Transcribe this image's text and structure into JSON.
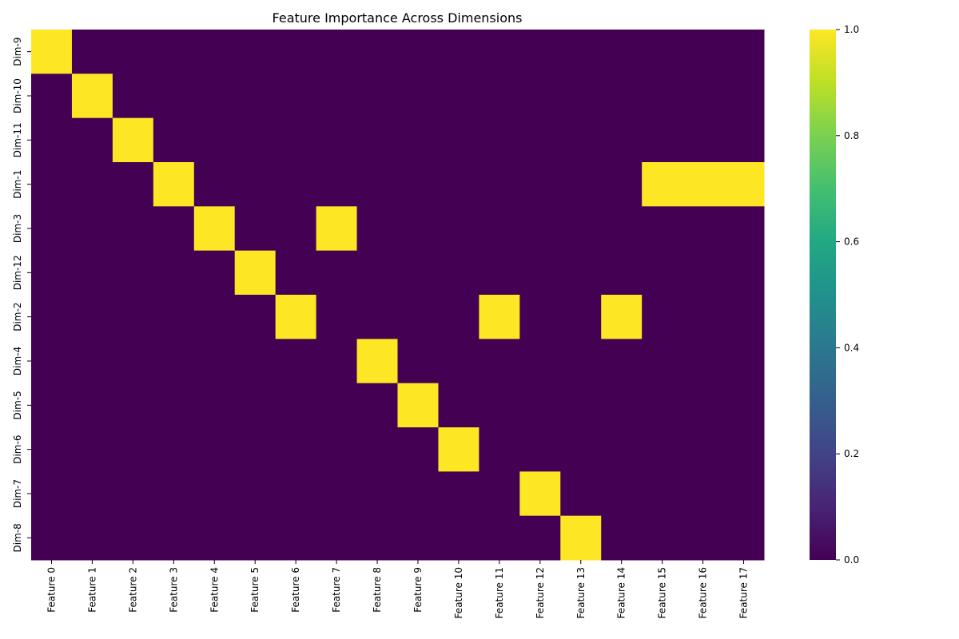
{
  "chart_data": {
    "type": "heatmap",
    "title": "Feature Importance Across Dimensions",
    "xlabel": "",
    "ylabel": "",
    "x_categories": [
      "Feature 0",
      "Feature 1",
      "Feature 2",
      "Feature 3",
      "Feature 4",
      "Feature 5",
      "Feature 6",
      "Feature 7",
      "Feature 8",
      "Feature 9",
      "Feature 10",
      "Feature 11",
      "Feature 12",
      "Feature 13",
      "Feature 14",
      "Feature 15",
      "Feature 16",
      "Feature 17"
    ],
    "y_categories": [
      "Dim-9",
      "Dim-10",
      "Dim-11",
      "Dim-1",
      "Dim-3",
      "Dim-12",
      "Dim-2",
      "Dim-4",
      "Dim-5",
      "Dim-6",
      "Dim-7",
      "Dim-8"
    ],
    "values": [
      [
        1,
        0,
        0,
        0,
        0,
        0,
        0,
        0,
        0,
        0,
        0,
        0,
        0,
        0,
        0,
        0,
        0,
        0
      ],
      [
        0,
        1,
        0,
        0,
        0,
        0,
        0,
        0,
        0,
        0,
        0,
        0,
        0,
        0,
        0,
        0,
        0,
        0
      ],
      [
        0,
        0,
        1,
        0,
        0,
        0,
        0,
        0,
        0,
        0,
        0,
        0,
        0,
        0,
        0,
        0,
        0,
        0
      ],
      [
        0,
        0,
        0,
        1,
        0,
        0,
        0,
        0,
        0,
        0,
        0,
        0,
        0,
        0,
        0,
        1,
        1,
        1
      ],
      [
        0,
        0,
        0,
        0,
        1,
        0,
        0,
        1,
        0,
        0,
        0,
        0,
        0,
        0,
        0,
        0,
        0,
        0
      ],
      [
        0,
        0,
        0,
        0,
        0,
        1,
        0,
        0,
        0,
        0,
        0,
        0,
        0,
        0,
        0,
        0,
        0,
        0
      ],
      [
        0,
        0,
        0,
        0,
        0,
        0,
        1,
        0,
        0,
        0,
        0,
        1,
        0,
        0,
        1,
        0,
        0,
        0
      ],
      [
        0,
        0,
        0,
        0,
        0,
        0,
        0,
        0,
        1,
        0,
        0,
        0,
        0,
        0,
        0,
        0,
        0,
        0
      ],
      [
        0,
        0,
        0,
        0,
        0,
        0,
        0,
        0,
        0,
        1,
        0,
        0,
        0,
        0,
        0,
        0,
        0,
        0
      ],
      [
        0,
        0,
        0,
        0,
        0,
        0,
        0,
        0,
        0,
        0,
        1,
        0,
        0,
        0,
        0,
        0,
        0,
        0
      ],
      [
        0,
        0,
        0,
        0,
        0,
        0,
        0,
        0,
        0,
        0,
        0,
        0,
        1,
        0,
        0,
        0,
        0,
        0
      ],
      [
        0,
        0,
        0,
        0,
        0,
        0,
        0,
        0,
        0,
        0,
        0,
        0,
        0,
        1,
        0,
        0,
        0,
        0
      ]
    ],
    "colorbar": {
      "colormap": "viridis",
      "range": [
        0,
        1
      ],
      "ticks": [
        "0.0",
        "0.2",
        "0.4",
        "0.6",
        "0.8",
        "1.0"
      ]
    }
  }
}
